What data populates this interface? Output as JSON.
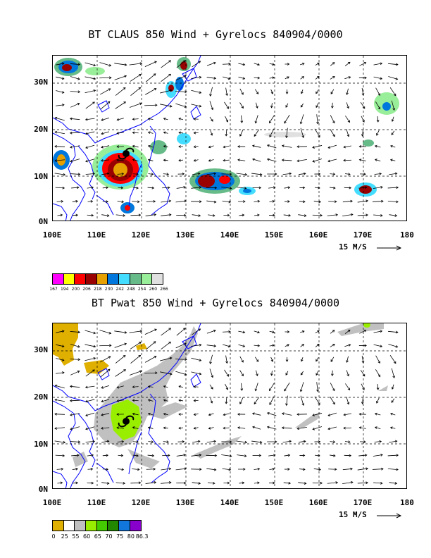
{
  "panel1": {
    "title": "BT CLAUS 850 Wind + Gyrelocs 840904/0000",
    "colorbar": {
      "colors": [
        "#ff00ff",
        "#ffff00",
        "#ff0000",
        "#990000",
        "#e6a000",
        "#0077dd",
        "#44ddff",
        "#66bb88",
        "#99ee99",
        "#e0e0e0"
      ],
      "labels": [
        "167",
        "194",
        "200",
        "206",
        "218",
        "230",
        "242",
        "248",
        "254",
        "260",
        "266"
      ]
    }
  },
  "panel2": {
    "title": "BT Pwat 850 Wind + Gyrelocs 840904/0000",
    "colorbar": {
      "colors": [
        "#e0b000",
        "#ffffff",
        "#c0c0c0",
        "#99ee00",
        "#44cc00",
        "#228800",
        "#1177dd",
        "#8800cc"
      ],
      "labels": [
        "0",
        "25",
        "55",
        "60",
        "65",
        "70",
        "75",
        "80",
        "86.3"
      ]
    }
  },
  "axes": {
    "x_ticks": [
      "100E",
      "110E",
      "120E",
      "130E",
      "140E",
      "150E",
      "160E",
      "170E",
      "180"
    ],
    "y_ticks": [
      "30N",
      "20N",
      "10N",
      "0N"
    ],
    "x_range": [
      100,
      180
    ],
    "y_range": [
      0,
      36
    ]
  },
  "reference_vector": "15 M/S",
  "colors": {
    "coast": "#0000ff",
    "grid": "#000000"
  },
  "icons": {
    "gyre_marker": "typhoon-symbol-icon"
  }
}
